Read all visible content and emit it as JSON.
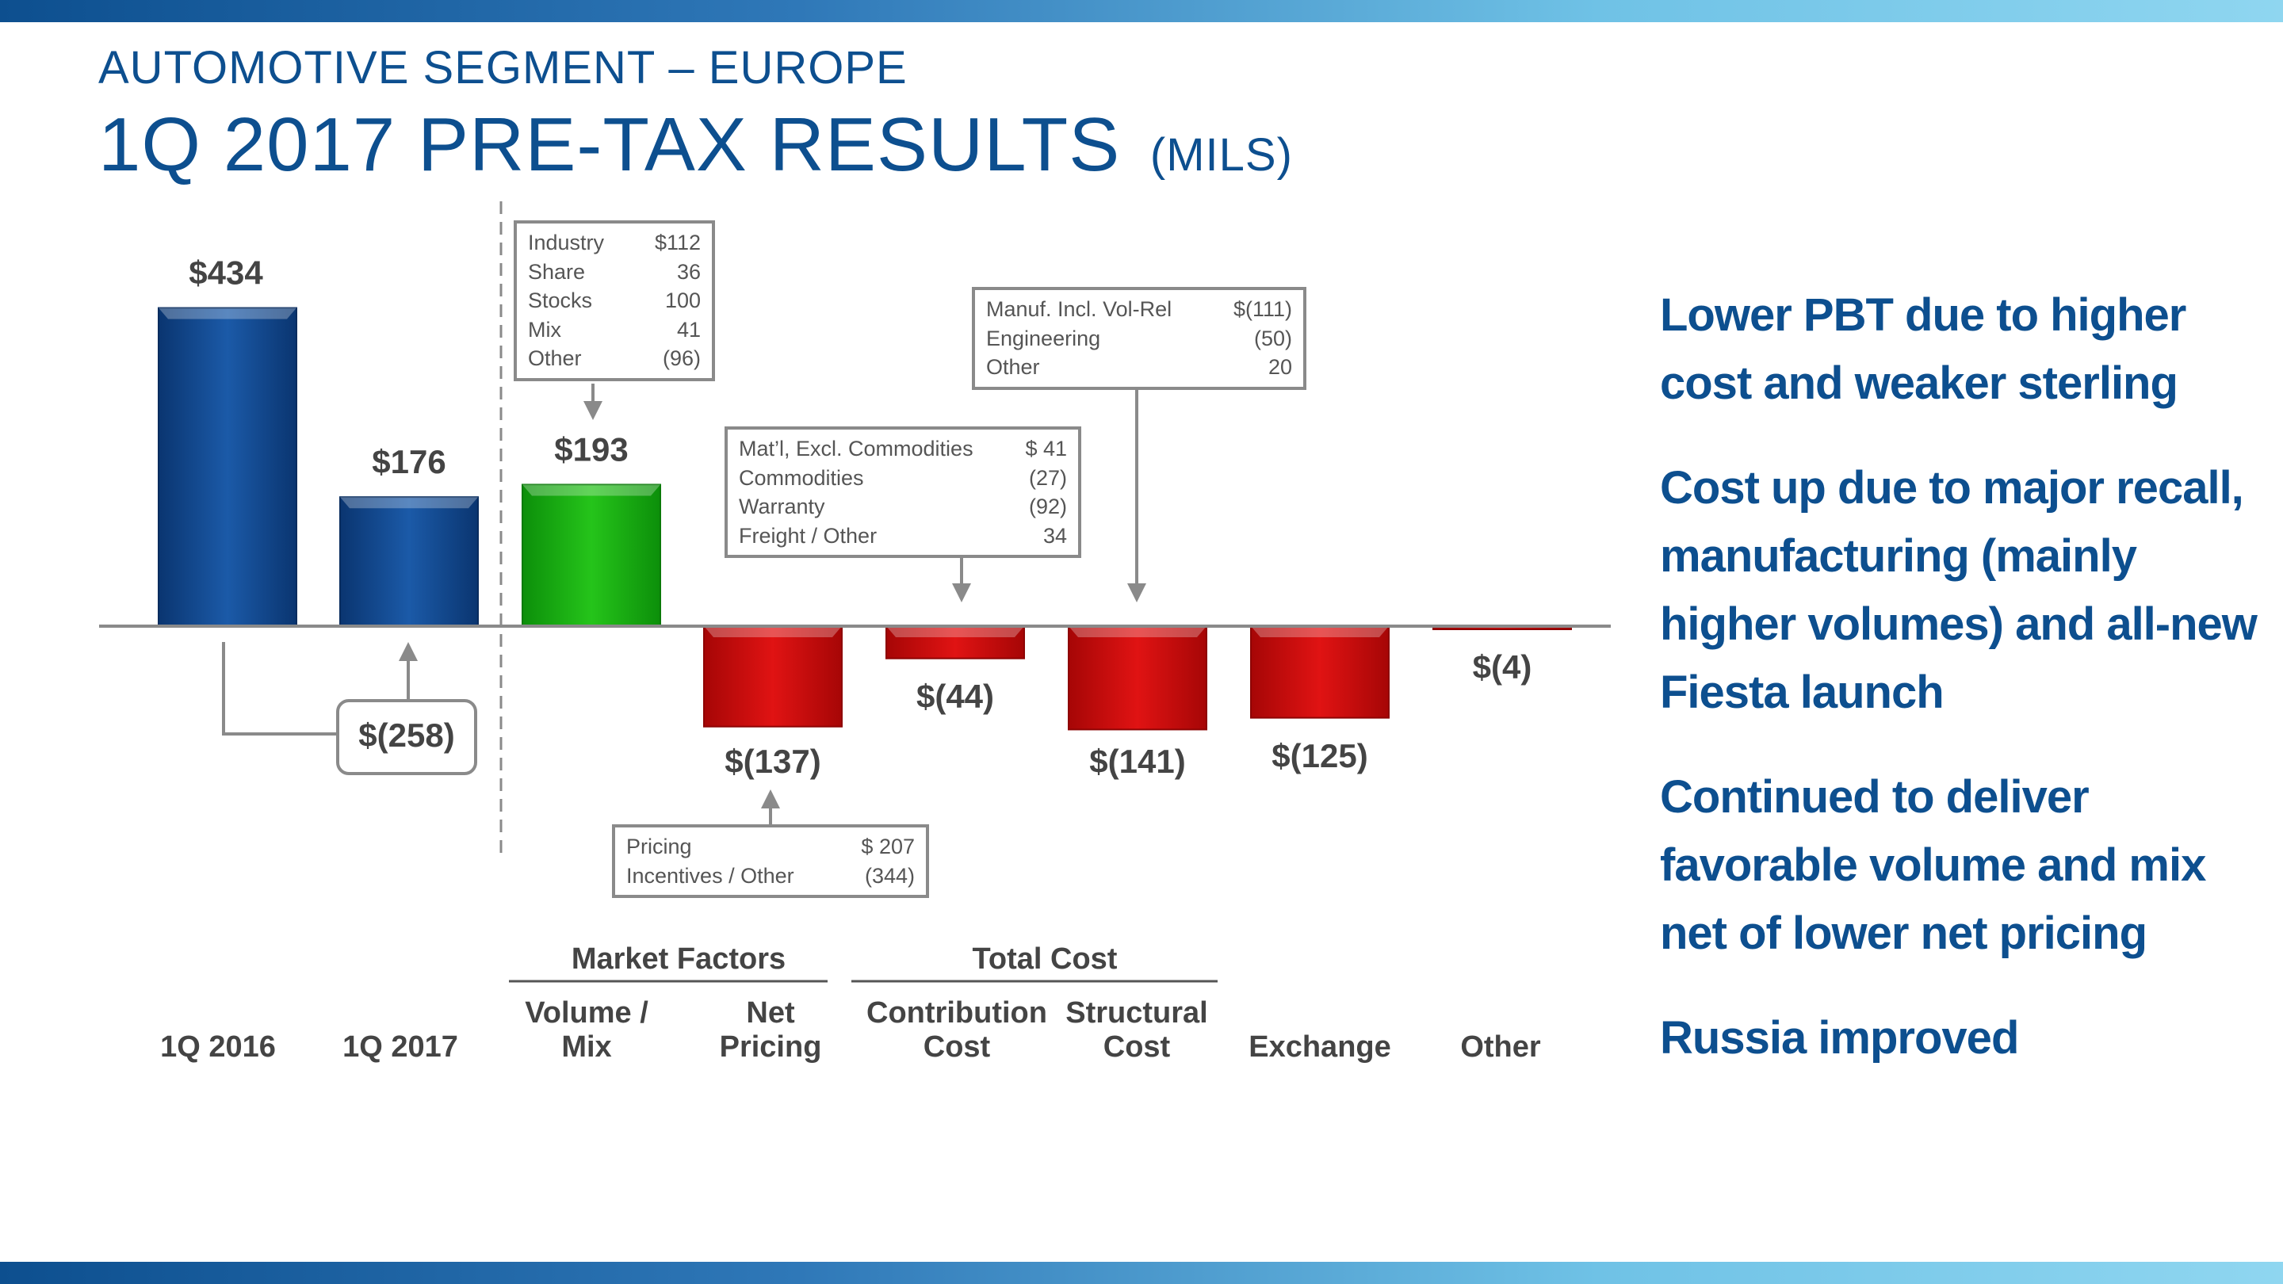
{
  "header": {
    "subtitle": "AUTOMOTIVE SEGMENT – EUROPE",
    "title": "1Q 2017 PRE-TAX RESULTS",
    "unit": "(MILS)"
  },
  "colors": {
    "brand": "#0d4f8f",
    "positive": "#1fae12",
    "negative": "#cc0a0a",
    "axis": "#8a8a8a"
  },
  "chart_data": {
    "type": "waterfall",
    "title": "1Q 2017 PRE-TAX RESULTS (MILS)",
    "categories": [
      {
        "key": "q1_2016",
        "lines": [
          "1Q 2016"
        ]
      },
      {
        "key": "q1_2017",
        "lines": [
          "1Q 2017"
        ]
      },
      {
        "key": "volume_mix",
        "lines": [
          "Volume /",
          "Mix"
        ]
      },
      {
        "key": "net_pricing",
        "lines": [
          "Net",
          "Pricing"
        ]
      },
      {
        "key": "contribution_cost",
        "lines": [
          "Contribution",
          "Cost"
        ]
      },
      {
        "key": "structural_cost",
        "lines": [
          "Structural",
          "Cost"
        ]
      },
      {
        "key": "exchange",
        "lines": [
          "Exchange"
        ]
      },
      {
        "key": "other",
        "lines": [
          "Other"
        ]
      }
    ],
    "values": [
      434,
      176,
      193,
      -137,
      -44,
      -141,
      -125,
      -4
    ],
    "value_labels": [
      "$434",
      "$176",
      "$193",
      "$(137)",
      "$(44)",
      "$(141)",
      "$(125)",
      "$(4)"
    ],
    "bar_kinds": [
      "total",
      "total",
      "positive",
      "negative",
      "negative",
      "negative",
      "negative",
      "negative"
    ],
    "change": {
      "label": "$(258)",
      "value": -258
    },
    "groups": [
      {
        "label": "Market Factors",
        "members": [
          "volume_mix",
          "net_pricing"
        ]
      },
      {
        "label": "Total Cost",
        "members": [
          "contribution_cost",
          "structural_cost"
        ]
      }
    ],
    "breakdowns": [
      {
        "key": "volume_mix",
        "rows": [
          [
            "Industry",
            "$112"
          ],
          [
            "Share",
            "36"
          ],
          [
            "Stocks",
            "100"
          ],
          [
            "Mix",
            "41"
          ],
          [
            "Other",
            "(96)"
          ]
        ]
      },
      {
        "key": "net_pricing",
        "rows": [
          [
            "Pricing",
            "$ 207"
          ],
          [
            "Incentives / Other",
            "(344)"
          ]
        ]
      },
      {
        "key": "contribution_cost",
        "rows": [
          [
            "Mat’l, Excl. Commodities",
            "$ 41"
          ],
          [
            "Commodities",
            "(27)"
          ],
          [
            "Warranty",
            "(92)"
          ],
          [
            "Freight  / Other",
            "34"
          ]
        ]
      },
      {
        "key": "structural_cost",
        "rows": [
          [
            "Manuf. Incl. Vol-Rel",
            "$(111)"
          ],
          [
            "Engineering",
            "(50)"
          ],
          [
            "Other",
            "20"
          ]
        ]
      }
    ]
  },
  "bullets": [
    "Lower PBT due to higher cost and weaker sterling",
    "Cost up due to major recall, manufacturing (mainly higher volumes) and all-new Fiesta launch",
    "Continued to deliver favorable volume and mix net of lower net pricing",
    "Russia improved"
  ]
}
